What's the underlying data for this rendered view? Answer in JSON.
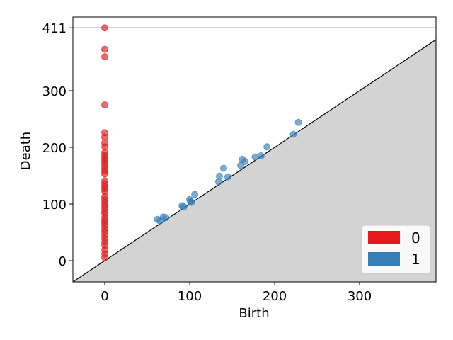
{
  "chart_data": {
    "type": "scatter",
    "title": "",
    "xlabel": "Birth",
    "ylabel": "Death",
    "xlim": [
      -37.5,
      390
    ],
    "ylim": [
      -37.5,
      430
    ],
    "x_ticks": [
      0,
      100,
      200,
      300
    ],
    "y_ticks": [
      0,
      100,
      200,
      300,
      411
    ],
    "infinity_line": 411,
    "diagonal": true,
    "legend_placement": "bottom-right",
    "colors": {
      "dim0": "#e41a1c",
      "dim1": "#377eb8",
      "diagonal_fill": "#d3d3d3",
      "infinity_line": "#555555"
    },
    "series": [
      {
        "name": "0",
        "color": "#e41a1c",
        "points": [
          [
            0,
            411
          ],
          [
            0,
            373
          ],
          [
            0,
            360
          ],
          [
            0,
            275
          ],
          [
            0,
            226
          ],
          [
            0,
            218
          ],
          [
            0,
            208
          ],
          [
            0,
            201
          ],
          [
            0,
            191
          ],
          [
            0,
            186
          ],
          [
            0,
            181
          ],
          [
            0,
            177
          ],
          [
            0,
            172
          ],
          [
            0,
            167
          ],
          [
            0,
            162
          ],
          [
            0,
            158
          ],
          [
            0,
            153
          ],
          [
            0,
            141
          ],
          [
            0,
            136
          ],
          [
            0,
            131
          ],
          [
            0,
            127
          ],
          [
            0,
            122
          ],
          [
            0,
            113
          ],
          [
            0,
            108
          ],
          [
            0,
            103
          ],
          [
            0,
            98
          ],
          [
            0,
            93
          ],
          [
            0,
            87
          ],
          [
            0,
            83
          ],
          [
            0,
            76
          ],
          [
            0,
            71
          ],
          [
            0,
            67
          ],
          [
            0,
            62
          ],
          [
            0,
            56
          ],
          [
            0,
            51
          ],
          [
            0,
            45
          ],
          [
            0,
            39
          ],
          [
            0,
            33
          ],
          [
            0,
            27
          ],
          [
            0,
            19
          ],
          [
            0,
            12
          ],
          [
            0,
            5
          ]
        ]
      },
      {
        "name": "1",
        "color": "#377eb8",
        "points": [
          [
            62,
            73
          ],
          [
            65,
            70
          ],
          [
            69,
            77
          ],
          [
            72,
            76
          ],
          [
            91,
            97
          ],
          [
            93,
            95
          ],
          [
            100,
            108
          ],
          [
            101,
            105
          ],
          [
            102,
            103
          ],
          [
            106,
            117
          ],
          [
            134,
            139
          ],
          [
            135,
            149
          ],
          [
            140,
            163
          ],
          [
            145,
            148
          ],
          [
            160,
            168
          ],
          [
            162,
            179
          ],
          [
            165,
            175
          ],
          [
            177,
            183
          ],
          [
            184,
            185
          ],
          [
            191,
            201
          ],
          [
            222,
            223
          ],
          [
            228,
            244
          ]
        ]
      }
    ]
  }
}
